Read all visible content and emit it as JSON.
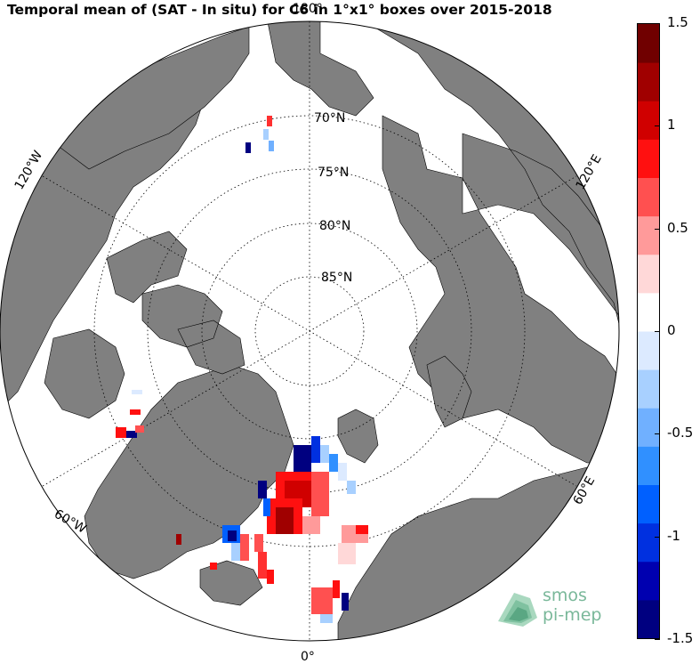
{
  "title": "Temporal mean of (SAT - In situ) for C6 in 1°x1° boxes over 2015-2018",
  "map": {
    "projection": "north-polar-stereographic",
    "land_color": "#808080",
    "ocean_color": "#ffffff",
    "latitude_labels": [
      "70°N",
      "75°N",
      "80°N",
      "85°N"
    ],
    "longitude_labels": {
      "top": "180°",
      "bottom": "0°",
      "upper_left": "120°W",
      "lower_left": "60°W",
      "upper_right": "120°E",
      "lower_right": "60°E"
    }
  },
  "colorbar": {
    "min": -1.5,
    "max": 1.5,
    "ticks": [
      "1.5",
      "1",
      "0.5",
      "0",
      "-0.5",
      "-1",
      "-1.5"
    ],
    "tick_values": [
      1.5,
      1,
      0.5,
      0,
      -0.5,
      -1,
      -1.5
    ],
    "colors_low_to_high": [
      "#000080",
      "#0000b0",
      "#0030e0",
      "#0060ff",
      "#3090ff",
      "#70b0ff",
      "#a8d0ff",
      "#dceaff",
      "#ffffff",
      "#ffd8d8",
      "#ff9a9a",
      "#ff5050",
      "#ff1010",
      "#d00000",
      "#a00000",
      "#700000"
    ]
  },
  "logo": {
    "line1": "smos",
    "line2": "pi-mep"
  }
}
